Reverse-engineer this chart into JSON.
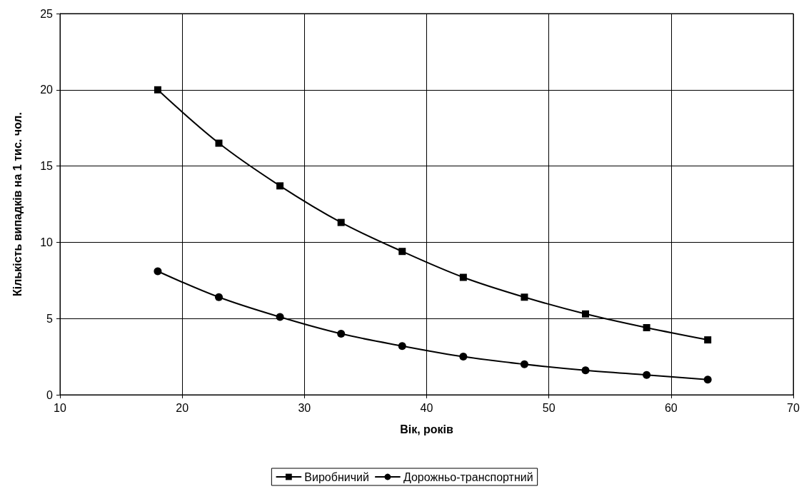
{
  "chart_data": {
    "type": "line",
    "xlabel": "Вік, років",
    "ylabel": "Кількість випадків на 1 тис. чол.",
    "x": [
      18,
      23,
      28,
      33,
      38,
      43,
      48,
      53,
      58,
      63
    ],
    "series": [
      {
        "name": "Виробничий",
        "color": "#000000",
        "marker": "square",
        "values": [
          20,
          16.5,
          13.7,
          11.3,
          9.4,
          7.7,
          6.4,
          5.3,
          4.4,
          3.6
        ]
      },
      {
        "name": "Дорожньо-транспортний",
        "color": "#000000",
        "marker": "circle",
        "values": [
          8.1,
          6.4,
          5.1,
          4.0,
          3.2,
          2.5,
          2.0,
          1.6,
          1.3,
          1.0
        ]
      }
    ],
    "xlim": [
      10,
      70
    ],
    "xticks": [
      10,
      20,
      30,
      40,
      50,
      60,
      70
    ],
    "ylim": [
      0,
      25
    ],
    "yticks": [
      0,
      5,
      10,
      15,
      20,
      25
    ],
    "grid": true,
    "legend": "bottom",
    "line_style": "solid"
  }
}
